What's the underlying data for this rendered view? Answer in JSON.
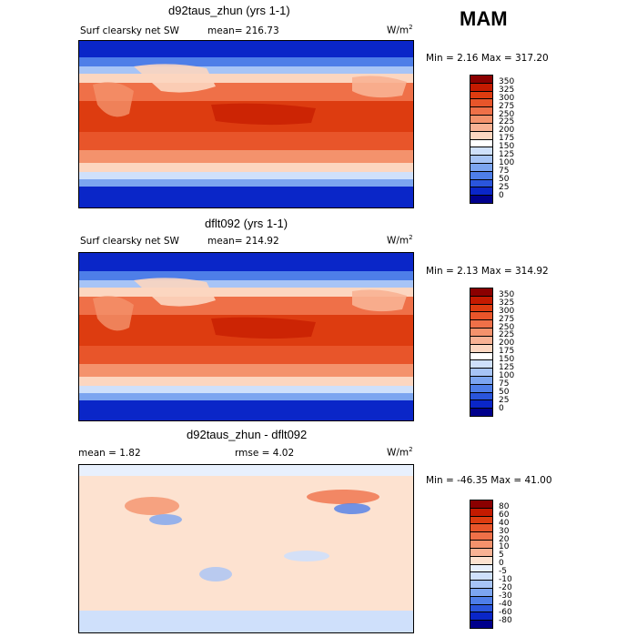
{
  "season": "MAM",
  "panels": [
    {
      "title": "d92taus_zhun (yrs 1-1)",
      "variable": "Surf clearsky net SW",
      "stat_left": "mean= 216.73",
      "stat_right": "",
      "units": "W/m",
      "units_sup": "2",
      "minmax": "Min =    2.16 Max = 317.20"
    },
    {
      "title": "dflt092 (yrs 1-1)",
      "variable": "Surf clearsky net SW",
      "stat_left": "mean= 214.92",
      "stat_right": "",
      "units": "W/m",
      "units_sup": "2",
      "minmax": "Min =    2.13 Max = 314.92"
    },
    {
      "title": "d92taus_zhun - dflt092",
      "variable": "",
      "stat_left": "mean =    1.82",
      "stat_right": "rmse =    4.02",
      "units": "W/m",
      "units_sup": "2",
      "minmax": "Min = -46.35 Max =   41.00"
    }
  ],
  "colorbar_abs": {
    "labels": [
      "350",
      "325",
      "300",
      "275",
      "250",
      "225",
      "200",
      "175",
      "150",
      "125",
      "100",
      "75",
      "50",
      "25",
      "0"
    ],
    "colors": [
      "#8b0000",
      "#c41a00",
      "#dd3c10",
      "#e8552a",
      "#ef7048",
      "#f4926c",
      "#f8b294",
      "#fcd6c0",
      "#ffffff",
      "#cfe0fb",
      "#a7c4f6",
      "#7ca5f0",
      "#4e7ee8",
      "#2a55dc",
      "#0a26c8",
      "#00008c"
    ]
  },
  "colorbar_diff": {
    "labels": [
      "80",
      "60",
      "40",
      "30",
      "20",
      "10",
      "5",
      "0",
      "-5",
      "-10",
      "-20",
      "-30",
      "-40",
      "-60",
      "-80"
    ],
    "colors": [
      "#8b0000",
      "#c41a00",
      "#dd3c10",
      "#e8552a",
      "#ef7048",
      "#f4926c",
      "#f8b294",
      "#fde2d0",
      "#e8f0fd",
      "#cfe0fb",
      "#a7c4f6",
      "#7ca5f0",
      "#4e7ee8",
      "#2a55dc",
      "#0a26c8",
      "#00008c"
    ]
  },
  "chart_data": {
    "type": "heatmap",
    "title": "MAM",
    "panels": [
      {
        "title": "d92taus_zhun (yrs 1-1)",
        "variable": "Surf clearsky net SW",
        "units": "W/m2",
        "mean": 216.73,
        "min": 2.16,
        "max": 317.2,
        "levels": [
          0,
          25,
          50,
          75,
          100,
          125,
          150,
          175,
          200,
          225,
          250,
          275,
          300,
          325,
          350
        ]
      },
      {
        "title": "dflt092 (yrs 1-1)",
        "variable": "Surf clearsky net SW",
        "units": "W/m2",
        "mean": 214.92,
        "min": 2.13,
        "max": 314.92,
        "levels": [
          0,
          25,
          50,
          75,
          100,
          125,
          150,
          175,
          200,
          225,
          250,
          275,
          300,
          325,
          350
        ]
      },
      {
        "title": "d92taus_zhun - dflt092",
        "units": "W/m2",
        "mean": 1.82,
        "rmse": 4.02,
        "min": -46.35,
        "max": 41.0,
        "levels": [
          -80,
          -60,
          -40,
          -30,
          -20,
          -10,
          -5,
          0,
          5,
          10,
          20,
          30,
          40,
          60,
          80
        ]
      }
    ]
  }
}
